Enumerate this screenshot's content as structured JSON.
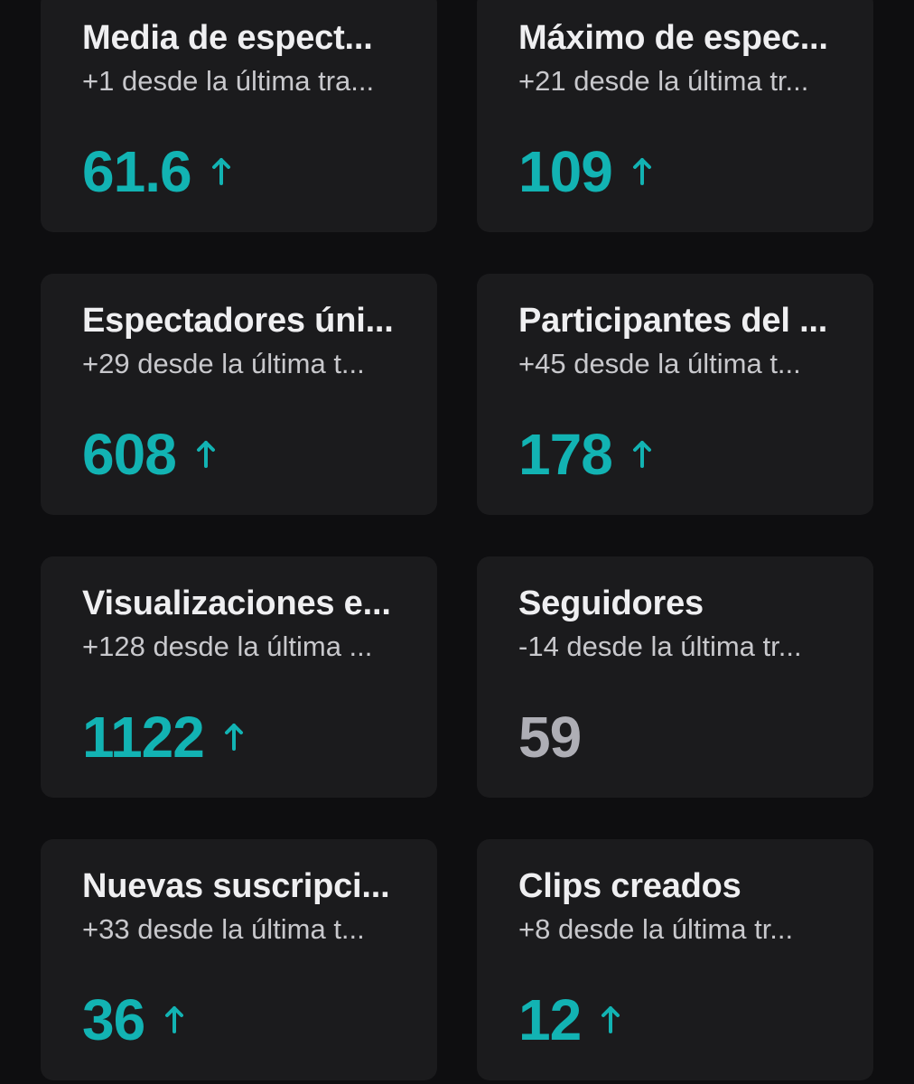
{
  "colors": {
    "background": "#0e0e10",
    "card": "#1b1b1d",
    "title": "#efeff1",
    "subtitle": "#c8c8cc",
    "positive": "#12b3b3",
    "neutral": "#aeaeb5"
  },
  "cards": [
    {
      "title": "Media de espect...",
      "subtitle": "+1 desde la última tra...",
      "value": "61.6",
      "trend": "up",
      "icon": "arrow-up-icon"
    },
    {
      "title": "Máximo de espec...",
      "subtitle": "+21 desde la última tr...",
      "value": "109",
      "trend": "up",
      "icon": "arrow-up-icon"
    },
    {
      "title": "Espectadores úni...",
      "subtitle": "+29 desde la última t...",
      "value": "608",
      "trend": "up",
      "icon": "arrow-up-icon"
    },
    {
      "title": "Participantes del ...",
      "subtitle": "+45 desde la última t...",
      "value": "178",
      "trend": "up",
      "icon": "arrow-up-icon"
    },
    {
      "title": "Visualizaciones e...",
      "subtitle": "+128 desde la última ...",
      "value": "1122",
      "trend": "up",
      "icon": "arrow-up-icon"
    },
    {
      "title": "Seguidores",
      "subtitle": "-14 desde la última tr...",
      "value": "59",
      "trend": "none",
      "icon": ""
    },
    {
      "title": "Nuevas suscripci...",
      "subtitle": "+33 desde la última t...",
      "value": "36",
      "trend": "up",
      "icon": "arrow-up-icon"
    },
    {
      "title": "Clips creados",
      "subtitle": "+8 desde la última tr...",
      "value": "12",
      "trend": "up",
      "icon": "arrow-up-icon"
    }
  ]
}
